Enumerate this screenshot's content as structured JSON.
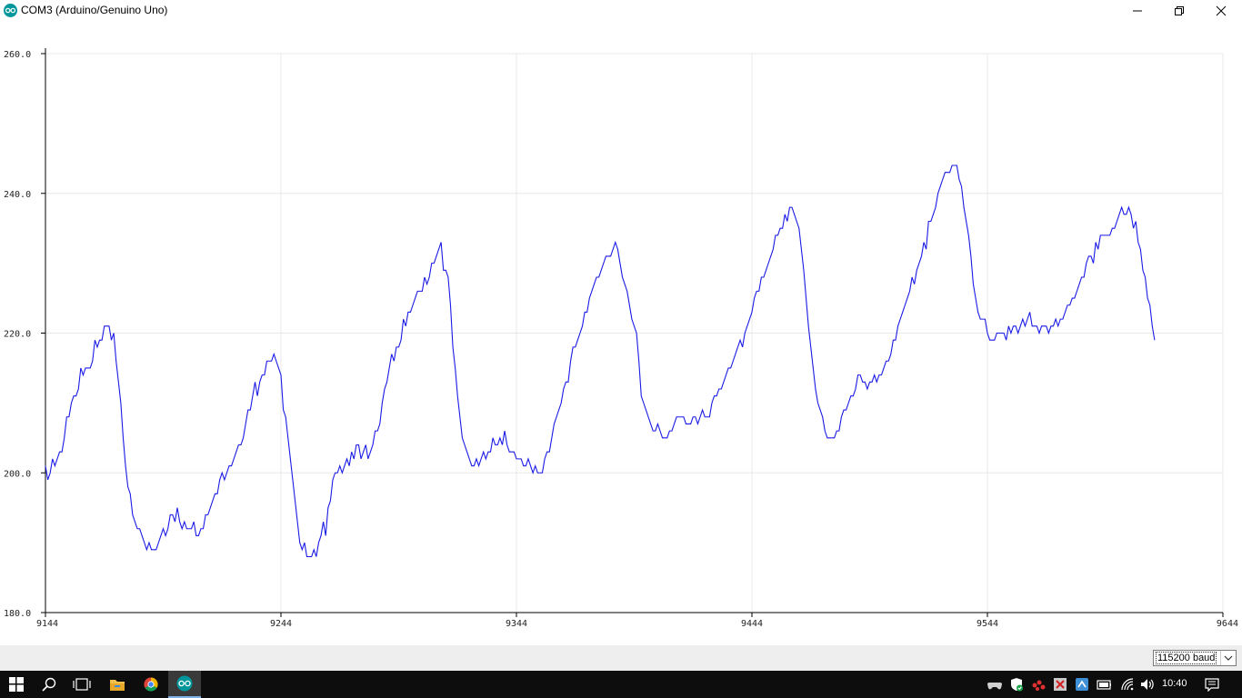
{
  "window": {
    "title": "COM3 (Arduino/Genuino Uno)",
    "icon": "arduino-icon",
    "controls": [
      "minimize-icon",
      "restore-icon",
      "close-icon"
    ]
  },
  "chart_data": {
    "type": "line",
    "title": "",
    "xlabel": "",
    "ylabel": "",
    "xlim": [
      9144,
      9644
    ],
    "ylim": [
      180,
      260
    ],
    "x_ticks": [
      "9144",
      "9244",
      "9344",
      "9444",
      "9544",
      "9644"
    ],
    "y_ticks": [
      "180.0",
      "200.0",
      "220.0",
      "240.0",
      "260.0"
    ],
    "grid": true,
    "colors": {
      "line": "#1a1ae6",
      "grid": "#e8e8e8",
      "axis": "#000000"
    },
    "series": [
      {
        "x_start": 9144,
        "x_step": 1,
        "values": [
          201,
          199,
          200,
          202,
          201,
          202,
          203,
          203,
          205,
          208,
          208,
          210,
          211,
          211,
          212,
          215,
          214,
          215,
          215,
          215,
          216,
          219,
          218,
          219,
          219,
          221,
          221,
          221,
          219,
          220,
          216,
          213,
          210,
          205,
          201,
          198,
          197,
          194,
          193,
          192,
          192,
          191,
          190,
          189,
          190,
          189,
          189,
          189,
          190,
          191,
          192,
          191,
          192,
          194,
          194,
          193,
          195,
          193,
          192,
          193,
          192,
          192,
          192,
          193,
          191,
          191,
          192,
          192,
          194,
          194,
          195,
          196,
          197,
          197,
          199,
          200,
          199,
          200,
          201,
          201,
          202,
          203,
          204,
          204,
          205,
          207,
          209,
          209,
          211,
          213,
          211,
          213,
          214,
          214,
          216,
          216,
          216,
          217,
          216,
          215,
          214,
          209,
          208,
          205,
          202,
          199,
          196,
          193,
          190,
          189,
          190,
          188,
          188,
          188,
          189,
          188,
          190,
          191,
          193,
          191,
          195,
          196,
          199,
          200,
          200,
          201,
          200,
          201,
          202,
          201,
          203,
          202,
          204,
          204,
          202,
          203,
          204,
          202,
          203,
          204,
          206,
          206,
          207,
          210,
          212,
          213,
          215,
          217,
          216,
          218,
          218,
          219,
          222,
          221,
          223,
          223,
          224,
          225,
          226,
          226,
          226,
          228,
          227,
          228,
          230,
          230,
          231,
          232,
          233,
          229,
          229,
          228,
          224,
          218,
          215,
          211,
          208,
          205,
          204,
          203,
          202,
          201,
          201,
          202,
          201,
          202,
          203,
          202,
          203,
          203,
          205,
          204,
          204,
          205,
          204,
          206,
          204,
          203,
          203,
          203,
          202,
          202,
          202,
          201,
          201,
          202,
          201,
          200,
          201,
          200,
          200,
          200,
          202,
          203,
          203,
          205,
          207,
          208,
          209,
          210,
          212,
          213,
          213,
          216,
          218,
          218,
          219,
          220,
          221,
          223,
          223,
          225,
          226,
          227,
          228,
          228,
          229,
          230,
          231,
          231,
          231,
          232,
          233,
          232,
          230,
          228,
          227,
          226,
          224,
          222,
          221,
          220,
          216,
          211,
          210,
          209,
          208,
          207,
          206,
          206,
          207,
          206,
          205,
          205,
          205,
          206,
          206,
          207,
          208,
          208,
          208,
          208,
          207,
          207,
          207,
          208,
          208,
          207,
          208,
          209,
          208,
          208,
          208,
          210,
          211,
          211,
          212,
          212,
          213,
          214,
          215,
          215,
          216,
          217,
          218,
          219,
          218,
          220,
          221,
          222,
          223,
          225,
          226,
          226,
          228,
          228,
          229,
          230,
          231,
          232,
          234,
          234,
          235,
          235,
          237,
          236,
          238,
          238,
          237,
          236,
          235,
          232,
          229,
          225,
          221,
          218,
          215,
          212,
          210,
          209,
          208,
          206,
          205,
          205,
          205,
          205,
          206,
          206,
          208,
          209,
          209,
          210,
          211,
          211,
          212,
          214,
          214,
          213,
          213,
          212,
          213,
          213,
          214,
          213,
          214,
          214,
          215,
          216,
          216,
          217,
          219,
          219,
          221,
          222,
          223,
          224,
          225,
          226,
          228,
          227,
          229,
          230,
          231,
          233,
          232,
          236,
          236,
          237,
          238,
          240,
          241,
          242,
          243,
          243,
          243,
          244,
          244,
          244,
          242,
          241,
          238,
          236,
          234,
          231,
          227,
          225,
          223,
          222,
          222,
          222,
          220,
          219,
          219,
          219,
          220,
          220,
          220,
          220,
          219,
          221,
          220,
          221,
          221,
          220,
          221,
          222,
          221,
          222,
          223,
          221,
          221,
          221,
          220,
          221,
          221,
          221,
          220,
          221,
          221,
          222,
          221,
          222,
          222,
          223,
          224,
          224,
          225,
          225,
          226,
          227,
          228,
          228,
          230,
          231,
          231,
          230,
          233,
          232,
          234,
          234,
          234,
          234,
          234,
          235,
          235,
          236,
          237,
          238,
          237,
          237,
          238,
          237,
          235,
          236,
          233,
          232,
          229,
          228,
          225,
          224,
          221,
          219
        ]
      }
    ]
  },
  "serial": {
    "baud_selected": "115200 baud"
  },
  "taskbar": {
    "left_icons": [
      "windows-start-icon",
      "search-icon",
      "task-view-icon",
      "file-explorer-icon",
      "chrome-icon",
      "arduino-taskbar-icon"
    ],
    "tray_icons": [
      "gamepad-icon",
      "defender-icon",
      "network-alert-icon",
      "error-icon",
      "app-tray-icon",
      "battery-icon",
      "wifi-icon",
      "volume-icon"
    ],
    "clock": "10:40",
    "notification_icon": "action-center-icon"
  }
}
